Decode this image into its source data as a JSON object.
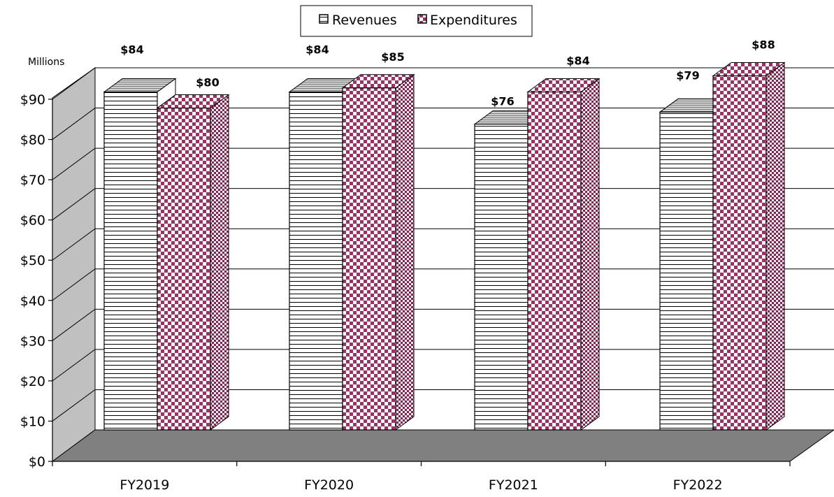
{
  "chart_data": {
    "type": "bar",
    "title": "",
    "xlabel": "",
    "ylabel": "",
    "y_unit_label": "Millions",
    "categories": [
      "FY2019",
      "FY2020",
      "FY2021",
      "FY2022"
    ],
    "series": [
      {
        "name": "Revenues",
        "values": [
          84,
          84,
          76,
          79
        ],
        "labels": [
          "$84",
          "$84",
          "$76",
          "$79"
        ],
        "pattern": "horizontal-stripes",
        "color": "#ffffff"
      },
      {
        "name": "Expenditures",
        "values": [
          80,
          85,
          84,
          88
        ],
        "labels": [
          "$80",
          "$85",
          "$84",
          "$88"
        ],
        "pattern": "checkerboard",
        "color": "#993366"
      }
    ],
    "ylim": [
      0,
      90
    ],
    "y_ticks": [
      "$0",
      "$10",
      "$20",
      "$30",
      "$40",
      "$50",
      "$60",
      "$70",
      "$80",
      "$90"
    ],
    "grid": true,
    "legend_position": "top-center",
    "style": "3d-column",
    "colors": {
      "expenditure_accent": "#993366",
      "floor": "#808080",
      "wall": "#c0c0c0"
    }
  }
}
